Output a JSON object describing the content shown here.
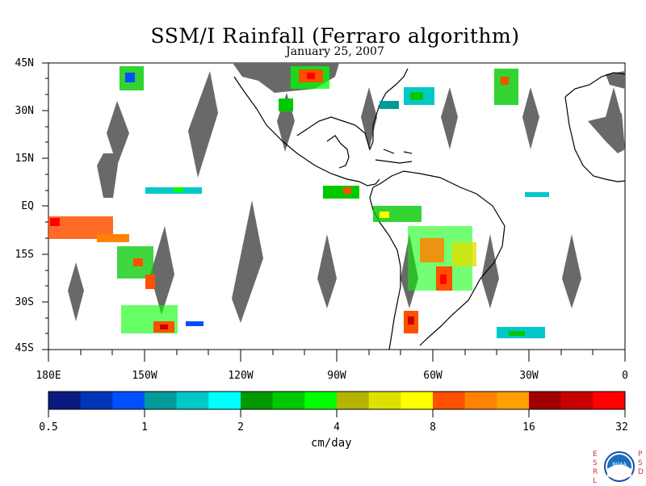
{
  "title": "SSM/I Rainfall (Ferraro algorithm)",
  "date": "January 25, 2007",
  "lat_labels": [
    "45N",
    "30N",
    "15N",
    "EQ",
    "15S",
    "30S",
    "45S"
  ],
  "lon_labels": [
    "180E",
    "150W",
    "120W",
    "90W",
    "60W",
    "30W",
    "0"
  ],
  "colorbar": {
    "units": "cm/day",
    "tick_labels": [
      "0.5",
      "1",
      "2",
      "4",
      "8",
      "16",
      "32"
    ],
    "colors": [
      "#0a1a80",
      "#0035b8",
      "#0050ff",
      "#009a9a",
      "#00c8c8",
      "#00ffff",
      "#009a00",
      "#00c800",
      "#00ff00",
      "#b4b400",
      "#e0e000",
      "#ffff00",
      "#ff5000",
      "#ff8200",
      "#ffa000",
      "#a00000",
      "#c80000",
      "#ff0000"
    ]
  },
  "colors": {
    "missing_swath": "#696969",
    "coast": "#000000"
  },
  "logo": {
    "left": "E S R L",
    "right": "P S D",
    "badge": "NOAA"
  }
}
